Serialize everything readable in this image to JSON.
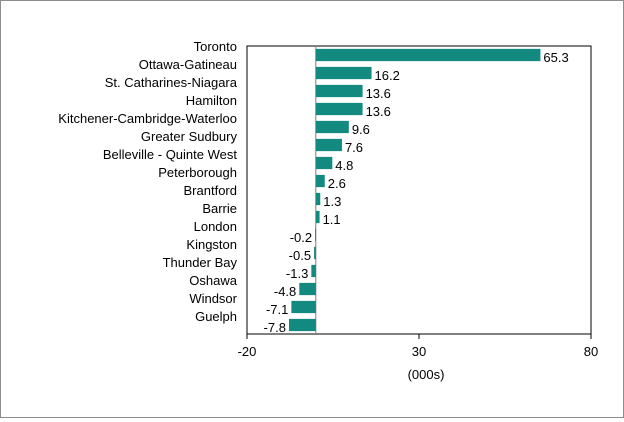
{
  "chart_data": {
    "type": "bar",
    "orientation": "horizontal",
    "categories": [
      "Toronto",
      "Ottawa-Gatineau",
      "St. Catharines-Niagara",
      "Hamilton",
      "Kitchener-Cambridge-Waterloo",
      "Greater Sudbury",
      "Belleville - Quinte West",
      "Peterborough",
      "Brantford",
      "Barrie",
      "London",
      "Kingston",
      "Thunder Bay",
      "Oshawa",
      "Windsor",
      "Guelph"
    ],
    "values": [
      65.3,
      16.2,
      13.6,
      13.6,
      9.6,
      7.6,
      4.8,
      2.6,
      1.3,
      1.1,
      -0.2,
      -0.5,
      -1.3,
      -4.8,
      -7.1,
      -7.8
    ],
    "value_labels": [
      "65.3",
      "16.2",
      "13.6",
      "13.6",
      "9.6",
      "7.6",
      "4.8",
      "2.6",
      "1.3",
      "1.1",
      "-0.2",
      "-0.5",
      "-1.3",
      "-4.8",
      "-7.1",
      "-7.8"
    ],
    "xlabel": "(000s)",
    "xlim": [
      -20,
      80
    ],
    "xticks": [
      "-20",
      "30",
      "80"
    ],
    "bar_color": "#138a80",
    "grid": false,
    "legend": "none"
  }
}
